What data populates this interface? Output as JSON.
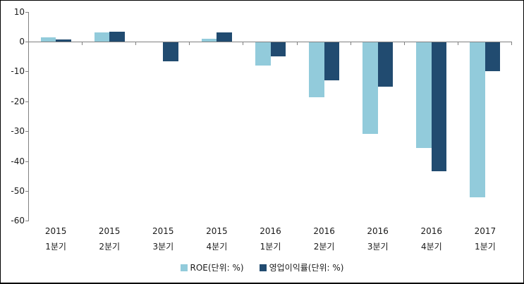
{
  "chart_data": {
    "type": "bar",
    "title": "",
    "categories": [
      {
        "year": "2015",
        "quarter": "1분기"
      },
      {
        "year": "2015",
        "quarter": "2분기"
      },
      {
        "year": "2015",
        "quarter": "3분기"
      },
      {
        "year": "2015",
        "quarter": "4분기"
      },
      {
        "year": "2016",
        "quarter": "1분기"
      },
      {
        "year": "2016",
        "quarter": "2분기"
      },
      {
        "year": "2016",
        "quarter": "3분기"
      },
      {
        "year": "2016",
        "quarter": "4분기"
      },
      {
        "year": "2017",
        "quarter": "1분기"
      }
    ],
    "series": [
      {
        "name": "ROE(단위: %)",
        "color": "#92CBDB",
        "values": [
          1.5,
          3.1,
          0,
          1.0,
          -8.0,
          -18.7,
          -30.8,
          -35.5,
          -52.0
        ]
      },
      {
        "name": "영업이익률(단위: %)",
        "color": "#214B70",
        "values": [
          0.8,
          3.3,
          -6.5,
          3.1,
          -5.0,
          -13.0,
          -15.0,
          -43.3,
          -10.0
        ]
      }
    ],
    "ylim": [
      -60,
      10
    ],
    "yticks": [
      10,
      0,
      -10,
      -20,
      -30,
      -40,
      -50,
      -60
    ],
    "grid": false,
    "legend_position": "bottom",
    "axis_color": "#808080",
    "text_color": "#1a1a1a",
    "background_color": "#ffffff"
  }
}
